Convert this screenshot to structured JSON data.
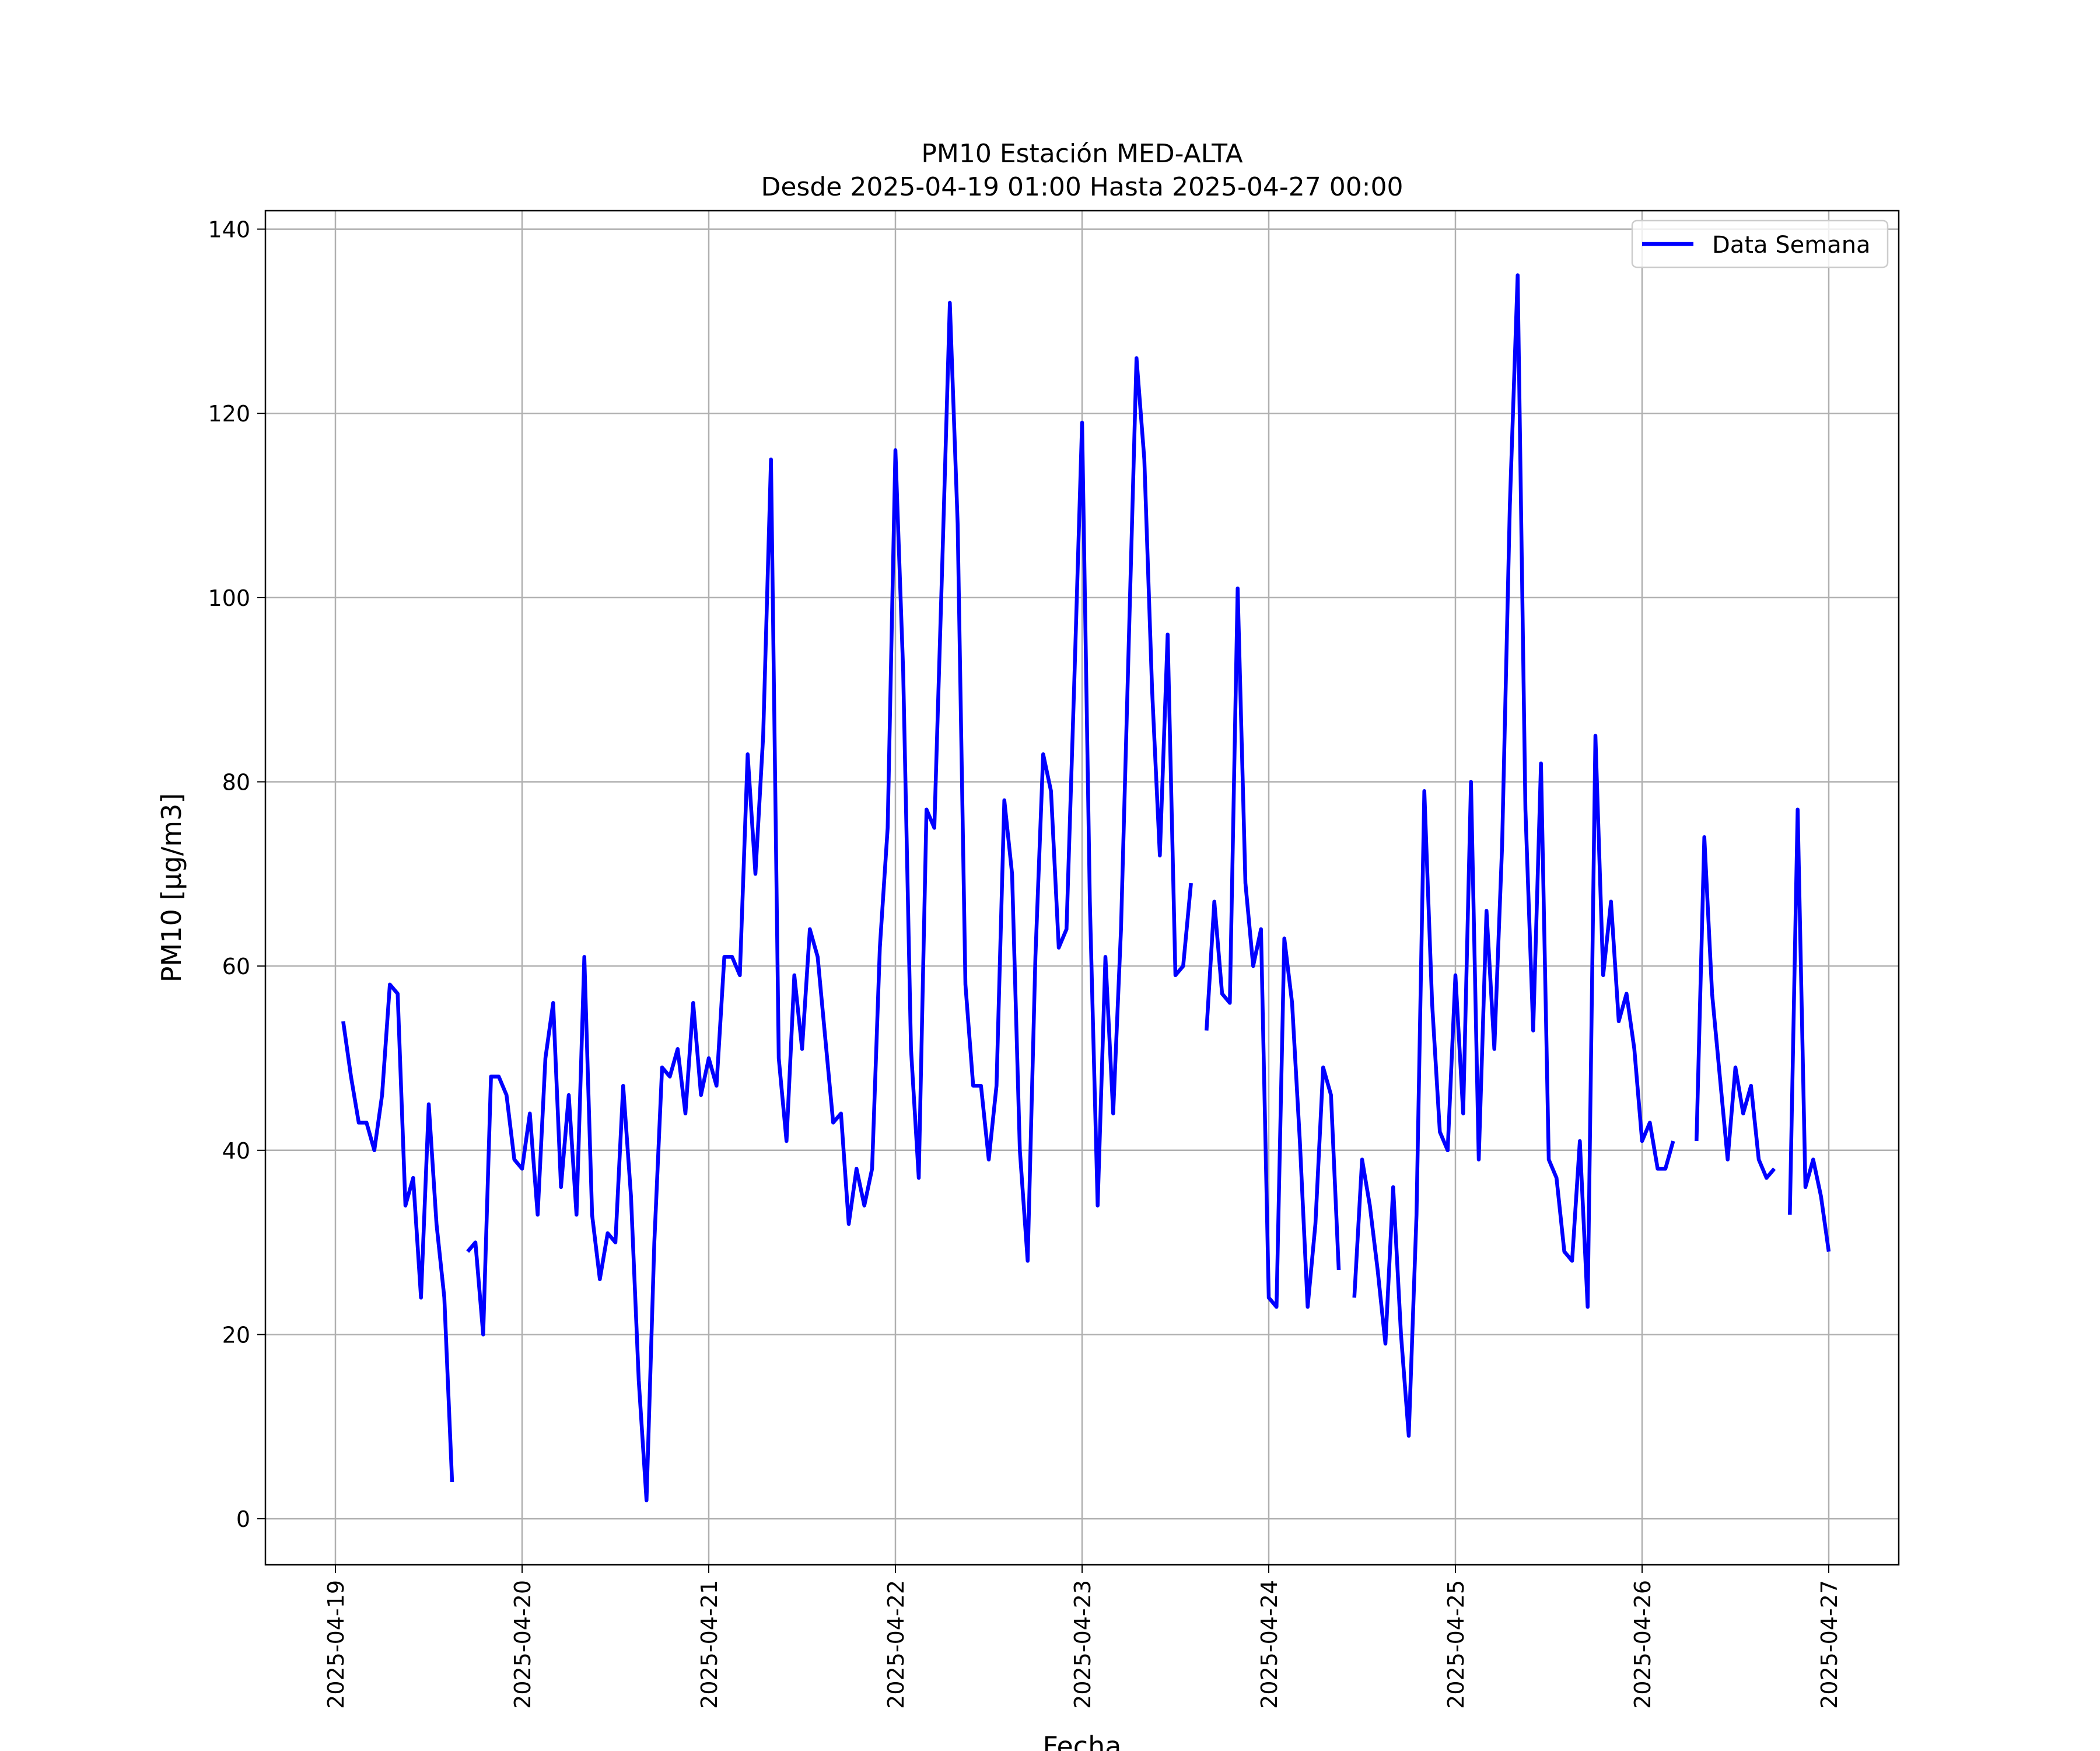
{
  "chart_data": {
    "type": "line",
    "title": "PM10 Estación MED-ALTA",
    "subtitle": "Desde 2025-04-19 01:00 Hasta 2025-04-27 00:00",
    "xlabel": "Fecha",
    "ylabel": "PM10 [µg/m3]",
    "ylim": [
      -5,
      142
    ],
    "xlim": [
      "2025-04-18 15:00",
      "2025-04-27 09:00"
    ],
    "x_ticks": [
      "2025-04-19",
      "2025-04-20",
      "2025-04-21",
      "2025-04-22",
      "2025-04-23",
      "2025-04-24",
      "2025-04-25",
      "2025-04-26",
      "2025-04-27"
    ],
    "y_ticks": [
      0,
      20,
      40,
      60,
      80,
      100,
      120,
      140
    ],
    "grid": true,
    "legend_position": "top-right",
    "series": [
      {
        "name": "Data Semana",
        "color": "#0000ff",
        "x_start": "2025-04-19 01:00",
        "x_step_hours": 1,
        "x_end": "2025-04-27 00:00",
        "values": [
          54,
          48,
          43,
          43,
          40,
          46,
          58,
          57,
          34,
          37,
          24,
          45,
          32,
          24,
          4,
          null,
          29,
          30,
          20,
          48,
          48,
          46,
          39,
          38,
          44,
          33,
          50,
          56,
          36,
          46,
          33,
          61,
          33,
          26,
          31,
          30,
          47,
          35,
          15,
          2,
          30,
          49,
          48,
          51,
          44,
          56,
          46,
          50,
          47,
          61,
          61,
          59,
          83,
          70,
          85,
          115,
          50,
          41,
          59,
          51,
          64,
          61,
          52,
          43,
          44,
          32,
          38,
          34,
          38,
          62,
          75,
          116,
          92,
          51,
          37,
          77,
          75,
          103,
          132,
          108,
          58,
          47,
          47,
          39,
          47,
          78,
          70,
          40,
          28,
          61,
          83,
          79,
          62,
          64,
          91,
          119,
          67,
          34,
          61,
          44,
          64,
          95,
          126,
          115,
          90,
          72,
          96,
          59,
          60,
          69,
          null,
          53,
          67,
          57,
          56,
          101,
          69,
          60,
          64,
          24,
          23,
          63,
          56,
          41,
          23,
          32,
          49,
          46,
          27,
          null,
          24,
          39,
          34,
          27,
          19,
          36,
          20,
          9,
          33,
          79,
          56,
          42,
          40,
          59,
          44,
          80,
          39,
          66,
          51,
          73,
          110,
          135,
          77,
          53,
          82,
          39,
          37,
          29,
          28,
          41,
          23,
          85,
          59,
          67,
          54,
          57,
          51,
          41,
          43,
          38,
          38,
          41,
          null,
          null,
          41,
          74,
          57,
          48,
          39,
          49,
          44,
          47,
          39,
          37,
          38,
          null,
          33,
          77,
          36,
          39,
          35,
          29
        ]
      }
    ]
  }
}
